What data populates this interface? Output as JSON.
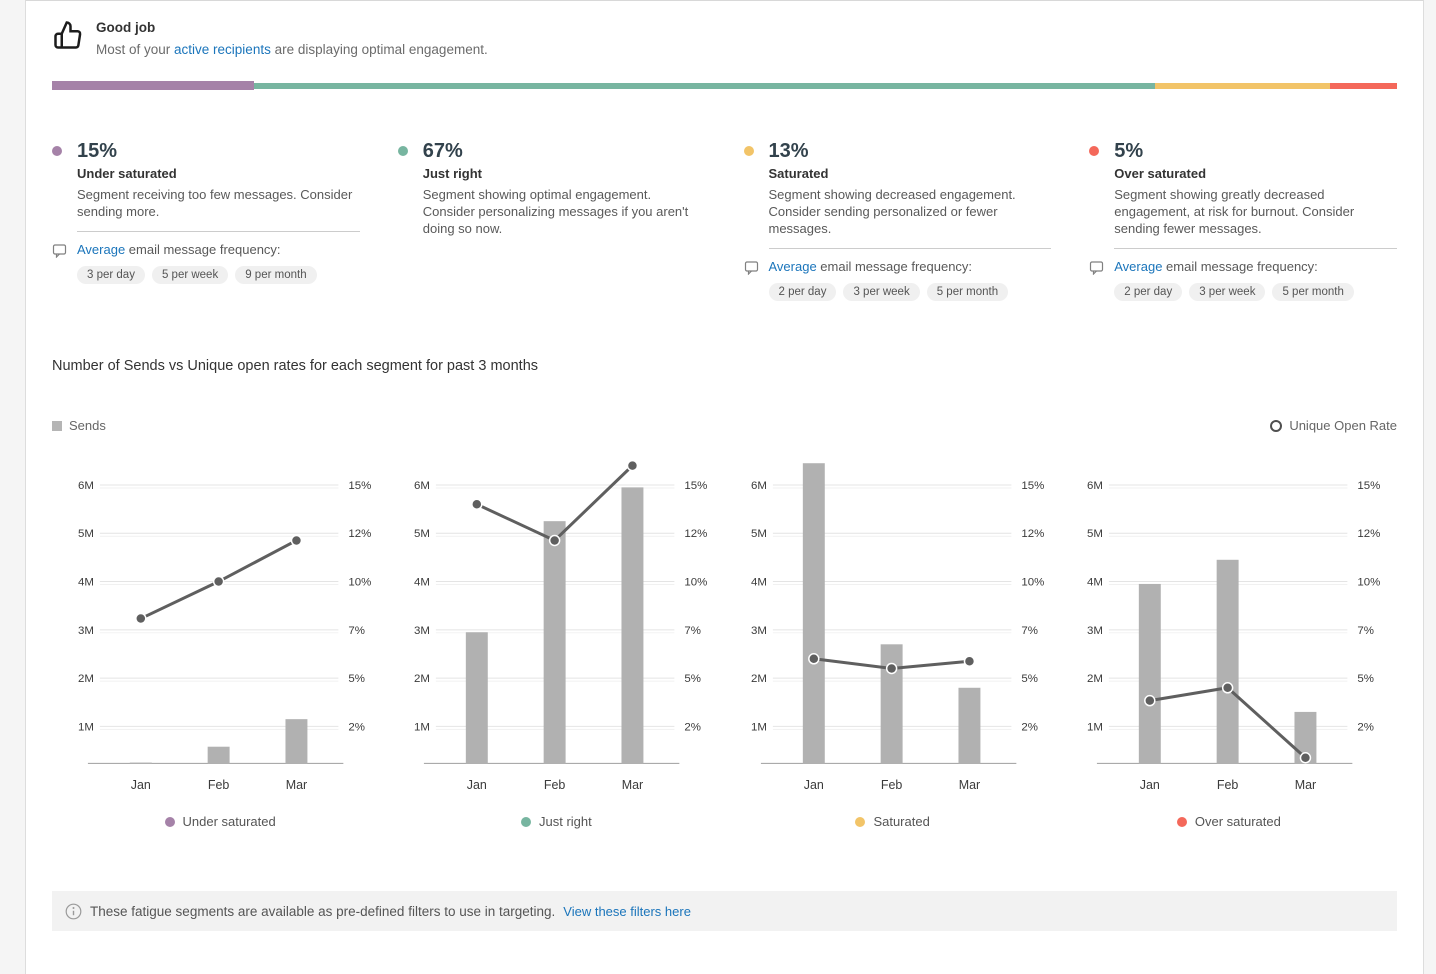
{
  "header": {
    "title": "Good job",
    "subtitle_pre": "Most of your ",
    "subtitle_link": "active recipients",
    "subtitle_post": " are displaying optimal engagement."
  },
  "colors": {
    "under_saturated": "#a582a8",
    "just_right": "#77b5a0",
    "saturated": "#f2c468",
    "over_saturated": "#f4685a",
    "link": "#1b75bb",
    "bar_fill": "#b1b1b1",
    "line": "#5f5f5f"
  },
  "icons": {
    "header": "thumbs-up-icon",
    "frequency": "speech-bubble-icon",
    "footer": "info-circle-icon",
    "sends_marker": "square-swatch-icon",
    "open_rate_marker": "donut-marker-icon"
  },
  "distribution_bar": {
    "segments": [
      {
        "name": "Under saturated",
        "value_pct": 15,
        "color": "#a582a8",
        "emphasis": true
      },
      {
        "name": "Just right",
        "value_pct": 67,
        "color": "#77b5a0",
        "emphasis": false
      },
      {
        "name": "Saturated",
        "value_pct": 13,
        "color": "#f2c468",
        "emphasis": false
      },
      {
        "name": "Over saturated",
        "value_pct": 5,
        "color": "#f4685a",
        "emphasis": false
      }
    ]
  },
  "segments": [
    {
      "pct": "15%",
      "title": "Under saturated",
      "color": "#a582a8",
      "description": "Segment receiving too few messages. Consider sending more.",
      "frequency": {
        "link_text": "Average",
        "rest_text": " email message frequency:",
        "pills": [
          "3 per day",
          "5 per week",
          "9 per month"
        ]
      }
    },
    {
      "pct": "67%",
      "title": "Just right",
      "color": "#77b5a0",
      "description": "Segment showing optimal engagement. Consider personalizing messages if you aren't doing so now."
    },
    {
      "pct": "13%",
      "title": "Saturated",
      "color": "#f2c468",
      "description": "Segment showing decreased engagement. Consider sending personalized or fewer messages.",
      "frequency": {
        "link_text": "Average",
        "rest_text": " email message frequency:",
        "pills": [
          "2 per day",
          "3 per week",
          "5 per month"
        ]
      }
    },
    {
      "pct": "5%",
      "title": "Over saturated",
      "color": "#f4685a",
      "description": "Segment showing greatly decreased engagement, at risk for burnout. Consider sending fewer messages.",
      "frequency": {
        "link_text": "Average",
        "rest_text": " email message frequency:",
        "pills": [
          "2 per day",
          "3 per week",
          "5 per month"
        ]
      }
    }
  ],
  "chart_section": {
    "title": "Number of Sends vs Unique open rates for each segment for past 3 months",
    "sends_legend": "Sends",
    "open_rate_legend": "Unique Open Rate"
  },
  "chart_data": [
    {
      "type": "combo-bar-line",
      "segment": "Under saturated",
      "color": "#a582a8",
      "categories": [
        "Jan",
        "Feb",
        "Mar"
      ],
      "series": [
        {
          "name": "Sends",
          "type": "bar",
          "axis": "left",
          "unit": "millions",
          "values": [
            0.02,
            0.45,
            1.15
          ]
        },
        {
          "name": "Unique Open Rate",
          "type": "line",
          "axis": "right",
          "unit": "percent",
          "values": [
            7.7,
            10,
            11.7
          ]
        }
      ],
      "left_axis_ticks": [
        "6M",
        "5M",
        "4M",
        "3M",
        "2M",
        "1M"
      ],
      "right_axis_ticks": [
        "15%",
        "12%",
        "10%",
        "7%",
        "5%",
        "2%"
      ],
      "grid": true
    },
    {
      "type": "combo-bar-line",
      "segment": "Just right",
      "color": "#77b5a0",
      "categories": [
        "Jan",
        "Feb",
        "Mar"
      ],
      "series": [
        {
          "name": "Sends",
          "type": "bar",
          "axis": "left",
          "unit": "millions",
          "values": [
            2.95,
            5.25,
            5.95
          ]
        },
        {
          "name": "Unique Open Rate",
          "type": "line",
          "axis": "right",
          "unit": "percent",
          "values": [
            13.8,
            11.7,
            16.2
          ]
        }
      ],
      "left_axis_ticks": [
        "6M",
        "5M",
        "4M",
        "3M",
        "2M",
        "1M"
      ],
      "right_axis_ticks": [
        "15%",
        "12%",
        "10%",
        "7%",
        "5%",
        "2%"
      ],
      "grid": true
    },
    {
      "type": "combo-bar-line",
      "segment": "Saturated",
      "color": "#f2c468",
      "categories": [
        "Jan",
        "Feb",
        "Mar"
      ],
      "series": [
        {
          "name": "Sends",
          "type": "bar",
          "axis": "left",
          "unit": "millions",
          "values": [
            6.45,
            2.7,
            1.8
          ]
        },
        {
          "name": "Unique Open Rate",
          "type": "line",
          "axis": "right",
          "unit": "percent",
          "values": [
            5.8,
            5.4,
            5.7
          ]
        }
      ],
      "left_axis_ticks": [
        "6M",
        "5M",
        "4M",
        "3M",
        "2M",
        "1M"
      ],
      "right_axis_ticks": [
        "15%",
        "12%",
        "10%",
        "7%",
        "5%",
        "2%"
      ],
      "grid": true
    },
    {
      "type": "combo-bar-line",
      "segment": "Over saturated",
      "color": "#f4685a",
      "categories": [
        "Jan",
        "Feb",
        "Mar"
      ],
      "series": [
        {
          "name": "Sends",
          "type": "bar",
          "axis": "left",
          "unit": "millions",
          "values": [
            3.95,
            4.45,
            1.3
          ]
        },
        {
          "name": "Unique Open Rate",
          "type": "line",
          "axis": "right",
          "unit": "percent",
          "values": [
            3.6,
            4.4,
            0.3
          ]
        }
      ],
      "left_axis_ticks": [
        "6M",
        "5M",
        "4M",
        "3M",
        "2M",
        "1M"
      ],
      "right_axis_ticks": [
        "15%",
        "12%",
        "10%",
        "7%",
        "5%",
        "2%"
      ],
      "grid": true
    }
  ],
  "footer": {
    "info_text": "These fatigue segments are available as pre-defined filters to use in targeting.",
    "link_text": "View these filters here"
  }
}
